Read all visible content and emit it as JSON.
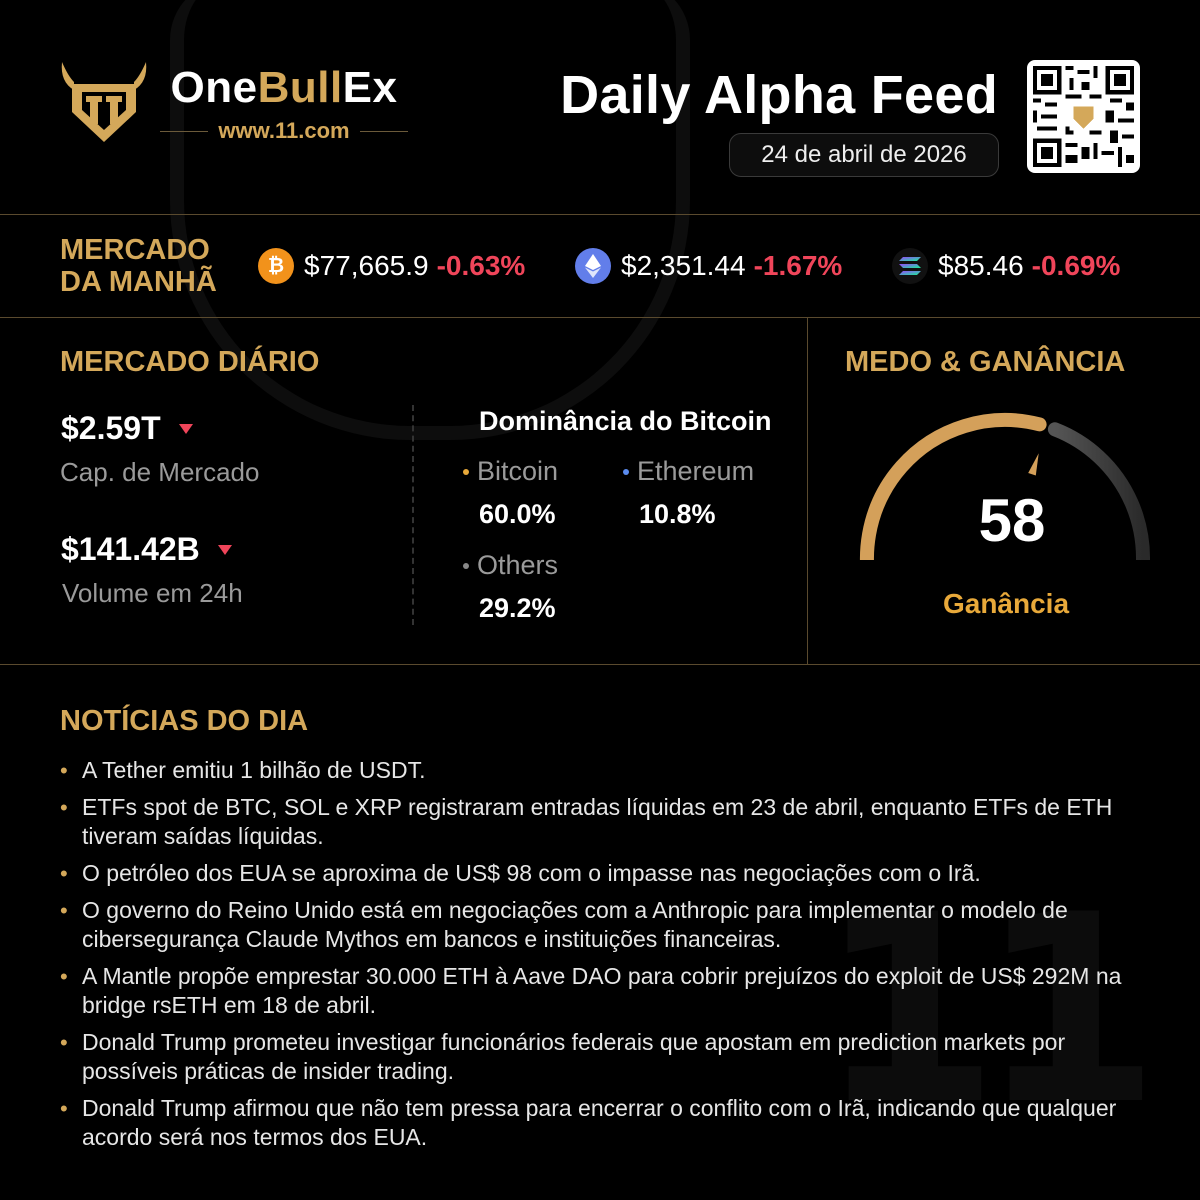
{
  "brand": {
    "name_part1": "One",
    "name_part2": "Bull",
    "name_part3": "Ex",
    "url": "www.11.com",
    "gold": "#d4a85a"
  },
  "header": {
    "title": "Daily Alpha Feed",
    "date": "24 de abril de 2026"
  },
  "morning_market": {
    "label_line1": "MERCADO",
    "label_line2": "DA MANHÃ",
    "tickers": [
      {
        "icon": "bitcoin-icon",
        "price": "$77,665.9",
        "change": "-0.63%"
      },
      {
        "icon": "ethereum-icon",
        "price": "$2,351.44",
        "change": "-1.67%"
      },
      {
        "icon": "solana-icon",
        "price": "$85.46",
        "change": "-0.69%"
      }
    ],
    "negative_color": "#f0455a"
  },
  "daily_market": {
    "title": "MERCADO DIÁRIO",
    "market_cap": {
      "value": "$2.59T",
      "label": "Cap. de Mercado"
    },
    "volume": {
      "value": "$141.42B",
      "label": "Volume em 24h"
    },
    "dominance": {
      "title": "Dominância do Bitcoin",
      "items": [
        {
          "name": "Bitcoin",
          "value": "60.0%",
          "dot_color": "#e8a93a"
        },
        {
          "name": "Ethereum",
          "value": "10.8%",
          "dot_color": "#5b8cf0"
        },
        {
          "name": "Others",
          "value": "29.2%",
          "dot_color": "#888888"
        }
      ]
    }
  },
  "fear_greed": {
    "title": "MEDO & GANÂNCIA",
    "value": "58",
    "level": 0.58,
    "label": "Ganância"
  },
  "news": {
    "title": "NOTÍCIAS DO DIA",
    "items": [
      "A Tether emitiu 1 bilhão de USDT.",
      "ETFs spot de BTC, SOL e XRP registraram entradas líquidas em 23 de abril, enquanto ETFs de ETH tiveram saídas líquidas.",
      "O petróleo dos EUA se aproxima de US$ 98 com o impasse nas negociações com o Irã.",
      "O governo do Reino Unido está em negociações com a Anthropic para implementar o modelo de cibersegurança Claude Mythos em bancos e instituições financeiras.",
      "A Mantle propõe emprestar 30.000 ETH à Aave DAO para cobrir prejuízos do exploit de US$ 292M na bridge rsETH em 18 de abril.",
      "Donald Trump prometeu investigar funcionários federais que apostam em prediction markets por possíveis práticas de insider trading.",
      "Donald Trump afirmou que não tem pressa para encerrar o conflito com o Irã, indicando que qualquer acordo será nos termos dos EUA."
    ]
  }
}
